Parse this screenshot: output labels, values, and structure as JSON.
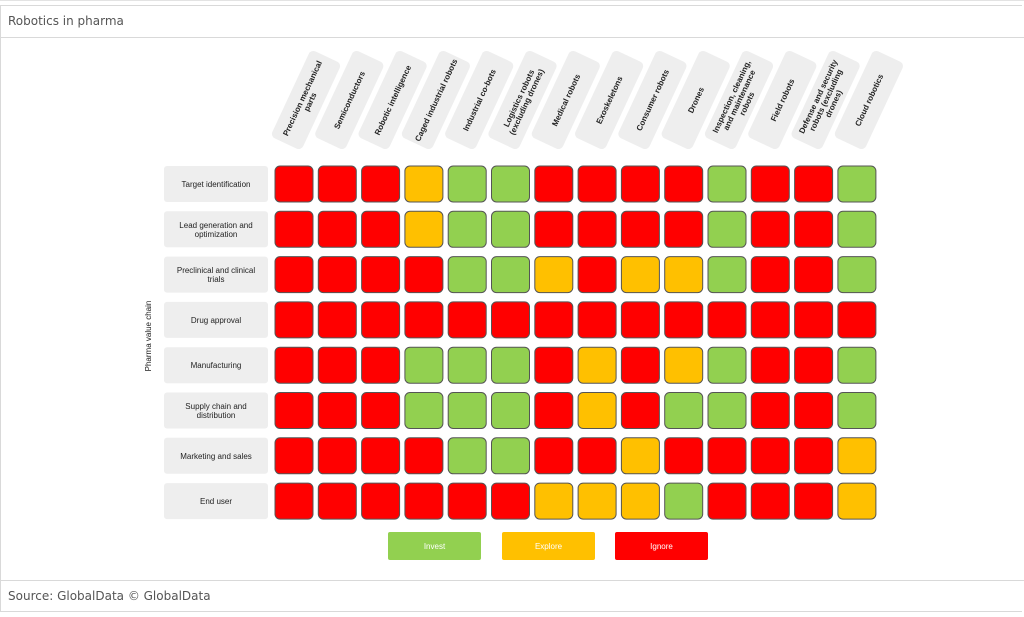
{
  "page": {
    "title": "Robotics in pharma",
    "source": "Source: GlobalData © GlobalData"
  },
  "colors": {
    "invest": "#92d050",
    "explore": "#ffc000",
    "ignore": "#ff0000"
  },
  "chart_data": {
    "type": "heatmap",
    "ylabel": "Pharma value chain",
    "columns": [
      [
        "Precision mechanical",
        "parts"
      ],
      [
        "Semiconductors"
      ],
      [
        "Robotic intelligence"
      ],
      [
        "Caged industrial robots"
      ],
      [
        "Industrial co-bots"
      ],
      [
        "Logistics robots",
        "(excluding drones)"
      ],
      [
        "Medical robots"
      ],
      [
        "Exoskeletons"
      ],
      [
        "Consumer robots"
      ],
      [
        "Drones"
      ],
      [
        "Inspection, cleaning,",
        "and maintenance",
        "robots"
      ],
      [
        "Field robots"
      ],
      [
        "Defense and security",
        "robots (excluding",
        "drones)"
      ],
      [
        "Cloud robotics"
      ]
    ],
    "rows": [
      [
        "Target identification"
      ],
      [
        "Lead generation and",
        "optimization"
      ],
      [
        "Preclinical and clinical",
        "trials"
      ],
      [
        "Drug approval"
      ],
      [
        "Manufacturing"
      ],
      [
        "Supply chain and",
        "distribution"
      ],
      [
        "Marketing and sales"
      ],
      [
        "End user"
      ]
    ],
    "values": [
      [
        "Ignore",
        "Ignore",
        "Ignore",
        "Explore",
        "Invest",
        "Invest",
        "Ignore",
        "Ignore",
        "Ignore",
        "Ignore",
        "Invest",
        "Ignore",
        "Ignore",
        "Invest"
      ],
      [
        "Ignore",
        "Ignore",
        "Ignore",
        "Explore",
        "Invest",
        "Invest",
        "Ignore",
        "Ignore",
        "Ignore",
        "Ignore",
        "Invest",
        "Ignore",
        "Ignore",
        "Invest"
      ],
      [
        "Ignore",
        "Ignore",
        "Ignore",
        "Ignore",
        "Invest",
        "Invest",
        "Explore",
        "Ignore",
        "Explore",
        "Explore",
        "Invest",
        "Ignore",
        "Ignore",
        "Invest"
      ],
      [
        "Ignore",
        "Ignore",
        "Ignore",
        "Ignore",
        "Ignore",
        "Ignore",
        "Ignore",
        "Ignore",
        "Ignore",
        "Ignore",
        "Ignore",
        "Ignore",
        "Ignore",
        "Ignore"
      ],
      [
        "Ignore",
        "Ignore",
        "Ignore",
        "Invest",
        "Invest",
        "Invest",
        "Ignore",
        "Explore",
        "Ignore",
        "Explore",
        "Invest",
        "Ignore",
        "Ignore",
        "Invest"
      ],
      [
        "Ignore",
        "Ignore",
        "Ignore",
        "Invest",
        "Invest",
        "Invest",
        "Ignore",
        "Explore",
        "Ignore",
        "Invest",
        "Invest",
        "Ignore",
        "Ignore",
        "Invest"
      ],
      [
        "Ignore",
        "Ignore",
        "Ignore",
        "Ignore",
        "Invest",
        "Invest",
        "Ignore",
        "Ignore",
        "Explore",
        "Ignore",
        "Ignore",
        "Ignore",
        "Ignore",
        "Explore"
      ],
      [
        "Ignore",
        "Ignore",
        "Ignore",
        "Ignore",
        "Ignore",
        "Ignore",
        "Explore",
        "Explore",
        "Explore",
        "Invest",
        "Ignore",
        "Ignore",
        "Ignore",
        "Explore"
      ]
    ],
    "legend": [
      {
        "label": "Invest",
        "key": "invest"
      },
      {
        "label": "Explore",
        "key": "explore"
      },
      {
        "label": "Ignore",
        "key": "ignore"
      }
    ]
  }
}
